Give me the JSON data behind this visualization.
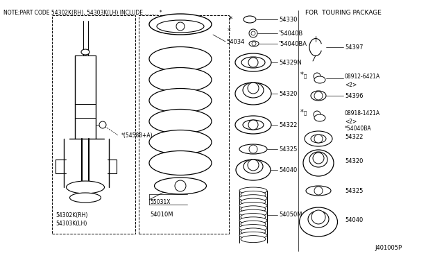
{
  "bg_color": "#ffffff",
  "title": "NOTE;PART CODE 54302K(RH), 54303K(LH) INCLUDE ........ *",
  "touring_title": "FOR  TOURING PACKAGE",
  "diagram_id": "J401005P"
}
